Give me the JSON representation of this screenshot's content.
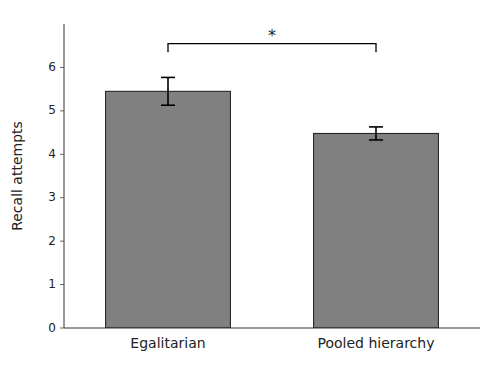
{
  "chart_data": {
    "type": "bar",
    "categories": [
      "Egalitarian",
      "Pooled hierarchy"
    ],
    "values": [
      5.45,
      4.48
    ],
    "errors": [
      0.32,
      0.15
    ],
    "color": "#808080",
    "ylabel": "Recall attempts",
    "ylim": [
      0,
      7.0
    ],
    "yticks": [
      0,
      1,
      2,
      3,
      4,
      5,
      6
    ],
    "grid": false,
    "significance": {
      "label": "*",
      "y_top": 6.55,
      "y_bottom": 6.35
    }
  }
}
